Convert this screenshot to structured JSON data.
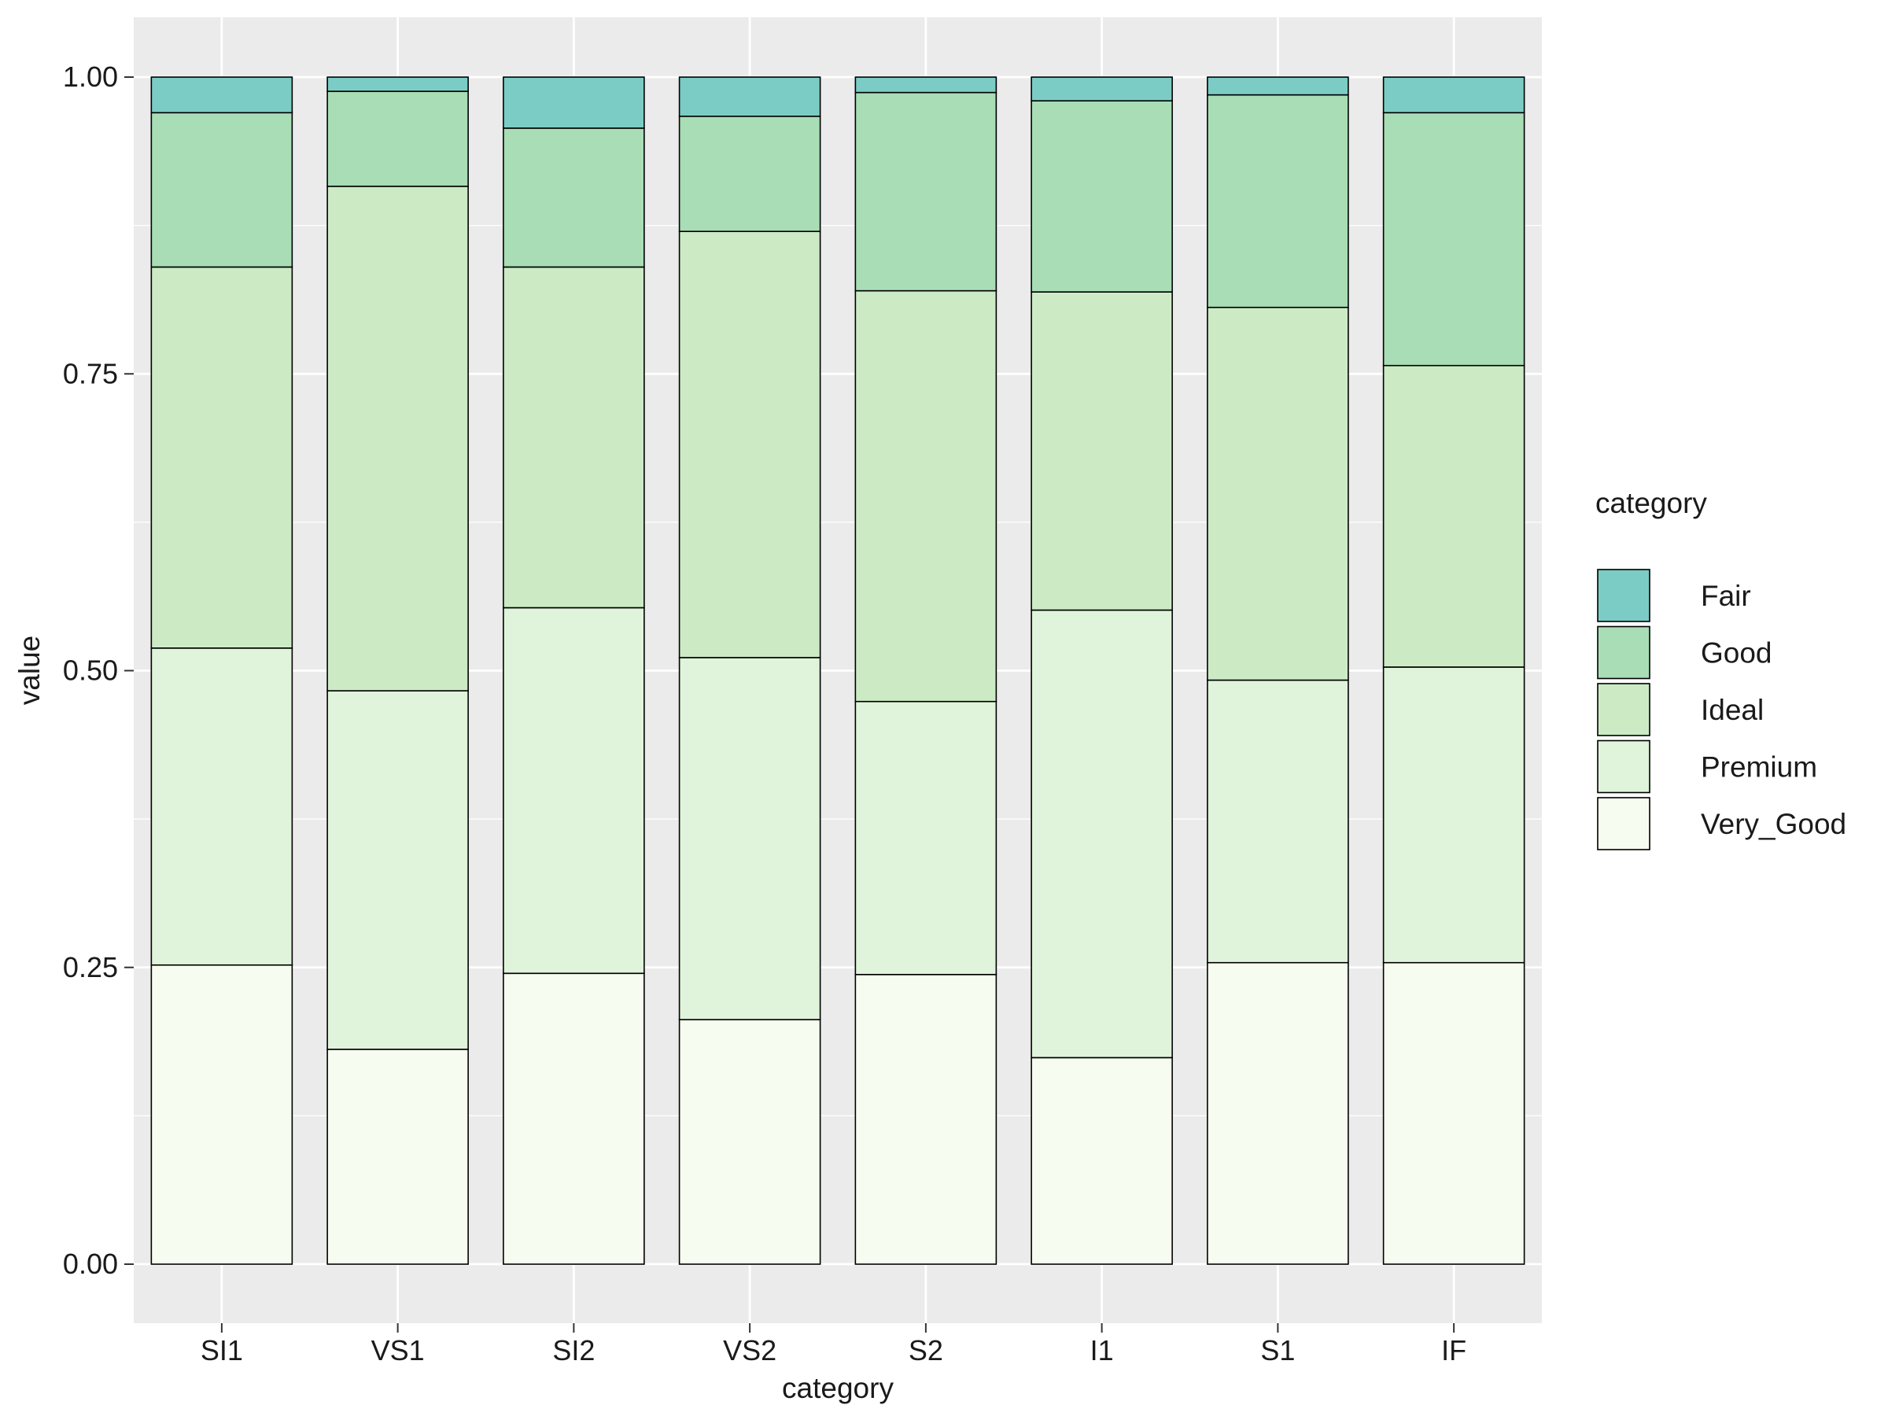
{
  "chart_data": {
    "type": "bar",
    "stacked": "fill",
    "xlabel": "category",
    "ylabel": "value",
    "ylim": [
      0,
      1
    ],
    "yticks": [
      "0.00",
      "0.25",
      "0.50",
      "0.75",
      "1.00"
    ],
    "grid": true,
    "legend": {
      "title": "category",
      "position": "right"
    },
    "categories": [
      "SI1",
      "VS1",
      "SI2",
      "VS2",
      "S2",
      "I1",
      "S1",
      "IF"
    ],
    "series": [
      {
        "name": "Very_Good",
        "color": "#f7fcf0",
        "values": [
          0.252,
          0.181,
          0.245,
          0.206,
          0.244,
          0.174,
          0.254,
          0.254
        ]
      },
      {
        "name": "Premium",
        "color": "#e0f3db",
        "values": [
          0.267,
          0.302,
          0.308,
          0.305,
          0.23,
          0.377,
          0.238,
          0.249
        ]
      },
      {
        "name": "Ideal",
        "color": "#ccebc5",
        "values": [
          0.321,
          0.425,
          0.287,
          0.359,
          0.346,
          0.268,
          0.314,
          0.254
        ]
      },
      {
        "name": "Good",
        "color": "#a8ddb5",
        "values": [
          0.13,
          0.08,
          0.117,
          0.097,
          0.167,
          0.161,
          0.179,
          0.213
        ]
      },
      {
        "name": "Fair",
        "color": "#7bccc4",
        "values": [
          0.03,
          0.012,
          0.043,
          0.033,
          0.013,
          0.02,
          0.015,
          0.03
        ]
      }
    ],
    "legend_order": [
      "Fair",
      "Good",
      "Ideal",
      "Premium",
      "Very_Good"
    ]
  }
}
